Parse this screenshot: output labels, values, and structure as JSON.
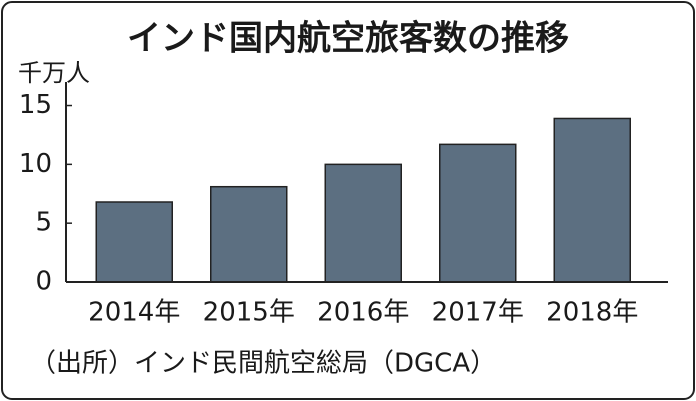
{
  "chart_data": {
    "type": "bar",
    "title": "インド国内航空旅客数の推移",
    "unit": "千万人",
    "categories": [
      "2014年",
      "2015年",
      "2016年",
      "2017年",
      "2018年"
    ],
    "values": [
      6.8,
      8.1,
      10.0,
      11.7,
      13.9
    ],
    "color": "#5c6f81",
    "ylim": [
      0,
      17
    ],
    "yticks": [
      0,
      5,
      10,
      15
    ],
    "source": "（出所）インド民間航空総局（DGCA）"
  }
}
